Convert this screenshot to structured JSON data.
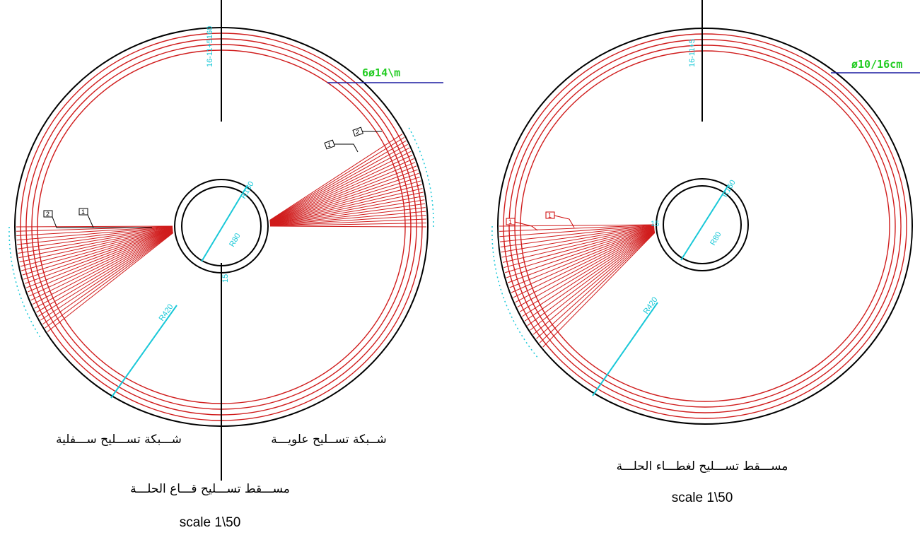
{
  "left_plan": {
    "title": "مســـقط تســـليح قـــاع الحلـــة",
    "scale": "scale 1\\50",
    "bottom_mesh": "شـــبكة تســـليح ســـفلية",
    "top_mesh": "شــبكة تســليح علويـــة",
    "bar_note": "6ø14\\m",
    "top_dim": "16-11+5160",
    "r_inner": "R160",
    "r_hole": "R80",
    "r_outer": "R420",
    "wall": "15",
    "tags": [
      "2",
      "1",
      "1",
      "2"
    ]
  },
  "right_plan": {
    "title": "مســـقط تســـليح لغطـــاء الحلـــة",
    "scale": "scale 1\\50",
    "bar_note": "ø10/16cm",
    "top_dim": "16-11+5",
    "r_inner": "R160",
    "r_hole": "R80",
    "r_outer": "R420",
    "wall": "15",
    "tags": [
      "1",
      "1"
    ]
  }
}
